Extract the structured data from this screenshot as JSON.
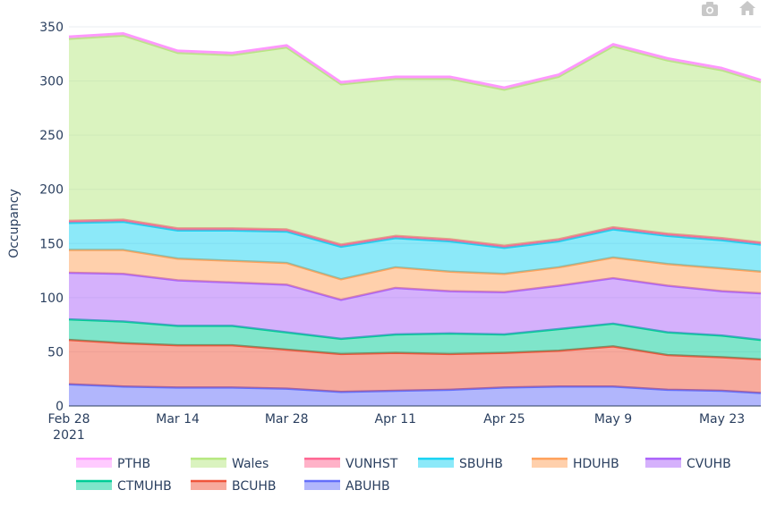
{
  "chart_data": {
    "type": "area",
    "stacked": true,
    "ylabel": "Occupancy",
    "ylim": [
      0,
      350
    ],
    "y_ticks": [
      0,
      50,
      100,
      150,
      200,
      250,
      300,
      350
    ],
    "x_start": "2021-02-28",
    "x_end": "2021-05-28",
    "x_ticks": [
      {
        "date": "2021-02-28",
        "label": "Feb 28",
        "sublabel": "2021"
      },
      {
        "date": "2021-03-14",
        "label": "Mar 14",
        "sublabel": ""
      },
      {
        "date": "2021-03-28",
        "label": "Mar 28",
        "sublabel": ""
      },
      {
        "date": "2021-04-11",
        "label": "Apr 11",
        "sublabel": ""
      },
      {
        "date": "2021-04-25",
        "label": "Apr 25",
        "sublabel": ""
      },
      {
        "date": "2021-05-09",
        "label": "May 9",
        "sublabel": ""
      },
      {
        "date": "2021-05-23",
        "label": "May 23",
        "sublabel": ""
      }
    ],
    "x": [
      "2021-02-28",
      "2021-03-07",
      "2021-03-14",
      "2021-03-21",
      "2021-03-28",
      "2021-04-04",
      "2021-04-11",
      "2021-04-18",
      "2021-04-25",
      "2021-05-02",
      "2021-05-09",
      "2021-05-16",
      "2021-05-23",
      "2021-05-28"
    ],
    "grid": true,
    "legend_position": "bottom",
    "series": [
      {
        "name": "ABUHB",
        "color": "#636efa",
        "values": [
          20,
          18,
          17,
          17,
          16,
          13,
          14,
          15,
          17,
          18,
          18,
          15,
          14,
          12
        ]
      },
      {
        "name": "BCUHB",
        "color": "#ef553b",
        "values": [
          41,
          40,
          39,
          39,
          36,
          35,
          35,
          33,
          32,
          33,
          37,
          32,
          31,
          31
        ]
      },
      {
        "name": "CTMUHB",
        "color": "#00cc96",
        "values": [
          19,
          20,
          18,
          18,
          16,
          14,
          17,
          19,
          17,
          20,
          21,
          21,
          20,
          18
        ]
      },
      {
        "name": "CVUHB",
        "color": "#ab63fa",
        "values": [
          43,
          44,
          42,
          40,
          44,
          36,
          43,
          39,
          39,
          40,
          42,
          43,
          41,
          43
        ]
      },
      {
        "name": "HDUHB",
        "color": "#ffa15a",
        "values": [
          21,
          22,
          20,
          20,
          20,
          19,
          19,
          18,
          17,
          17,
          19,
          20,
          21,
          20
        ]
      },
      {
        "name": "SBUHB",
        "color": "#19d3f3",
        "values": [
          25,
          26,
          26,
          28,
          29,
          30,
          27,
          28,
          24,
          24,
          26,
          26,
          26,
          25
        ]
      },
      {
        "name": "VUNHST",
        "color": "#ff6692",
        "values": [
          2,
          2,
          2,
          2,
          2,
          2,
          2,
          2,
          2,
          2,
          2,
          2,
          2,
          2
        ]
      },
      {
        "name": "Wales",
        "color": "#b6e880",
        "values": [
          168,
          170,
          162,
          160,
          168,
          148,
          145,
          148,
          144,
          150,
          167,
          160,
          155,
          148
        ]
      },
      {
        "name": "PTHB",
        "color": "#ff97ff",
        "values": [
          2,
          2,
          2,
          2,
          2,
          2,
          2,
          2,
          2,
          2,
          2,
          2,
          2,
          2
        ]
      }
    ]
  },
  "modebar": {
    "icons": [
      "camera-icon",
      "home-icon"
    ]
  }
}
